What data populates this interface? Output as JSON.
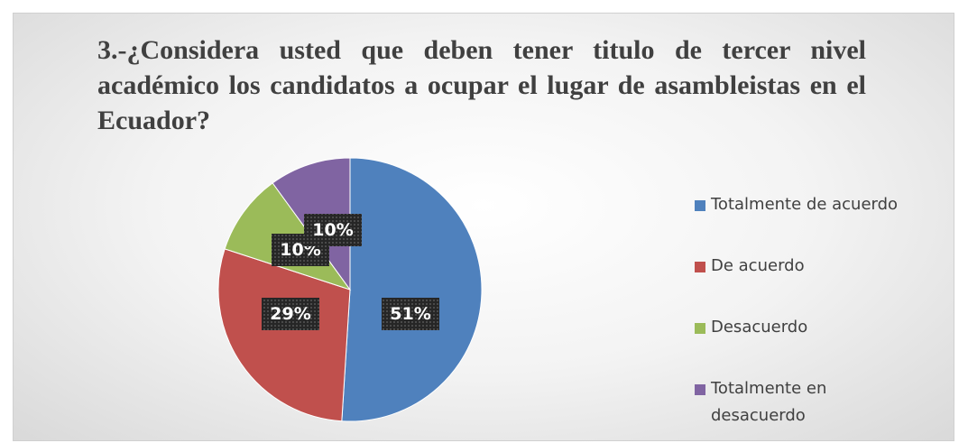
{
  "chart_data": {
    "type": "pie",
    "title": "3.-¿Considera usted que deben tener titulo de tercer nivel académico los candidatos a ocupar el lugar de asambleistas en el Ecuador?",
    "categories": [
      "Totalmente de acuerdo",
      "De acuerdo",
      "Desacuerdo",
      "Totalmente en desacuerdo"
    ],
    "values": [
      51,
      29,
      10,
      10
    ],
    "value_labels": [
      "51%",
      "29%",
      "10%",
      "10%"
    ],
    "colors": [
      "#4f81bd",
      "#c0504d",
      "#9bbb59",
      "#8064a2"
    ],
    "legend": "right"
  }
}
